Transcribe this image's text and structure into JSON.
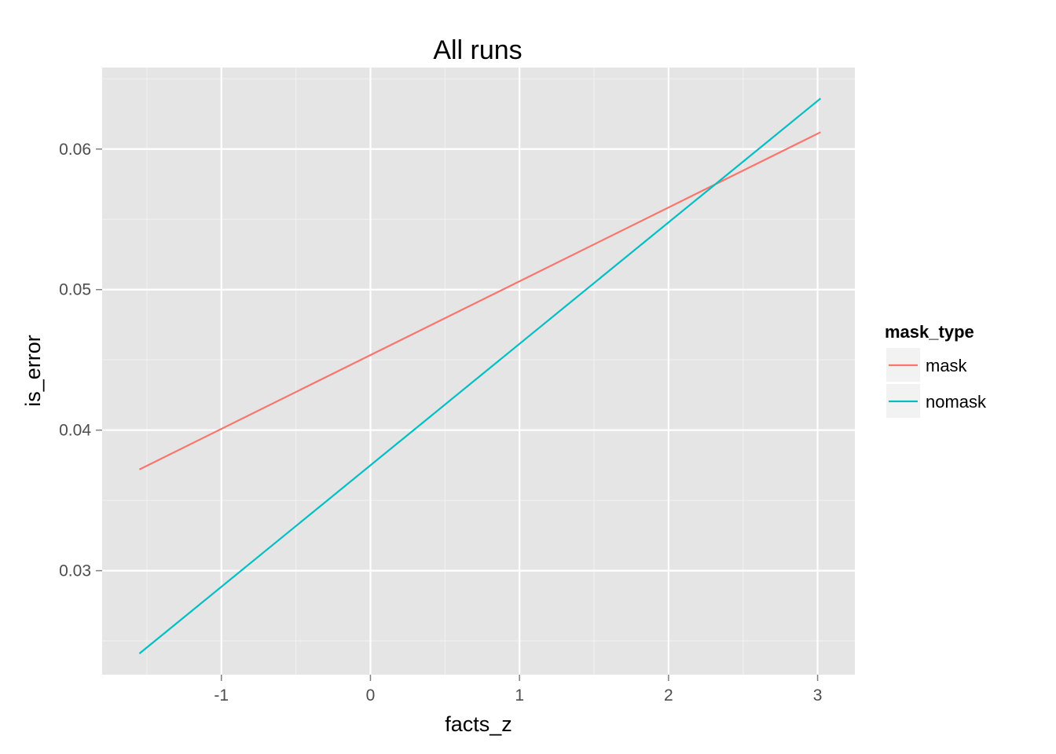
{
  "chart_data": {
    "type": "line",
    "title": "All runs",
    "xlabel": "facts_z",
    "ylabel": "is_error",
    "xlim": [
      -1.8,
      3.25
    ],
    "ylim": [
      0.0226,
      0.0658
    ],
    "x_ticks": [
      -1,
      0,
      1,
      2,
      3
    ],
    "x_tick_labels": [
      "-1",
      "0",
      "1",
      "2",
      "3"
    ],
    "y_ticks": [
      0.03,
      0.04,
      0.05,
      0.06
    ],
    "y_tick_labels": [
      "0.03",
      "0.04",
      "0.05",
      "0.06"
    ],
    "grid": true,
    "legend": {
      "title": "mask_type",
      "placement": "right"
    },
    "series": [
      {
        "name": "mask",
        "color": "#F8766D",
        "x": [
          -1.55,
          3.02
        ],
        "y": [
          0.0372,
          0.0612
        ]
      },
      {
        "name": "nomask",
        "color": "#00BFC4",
        "x": [
          -1.55,
          3.02
        ],
        "y": [
          0.0241,
          0.0636
        ]
      }
    ]
  }
}
